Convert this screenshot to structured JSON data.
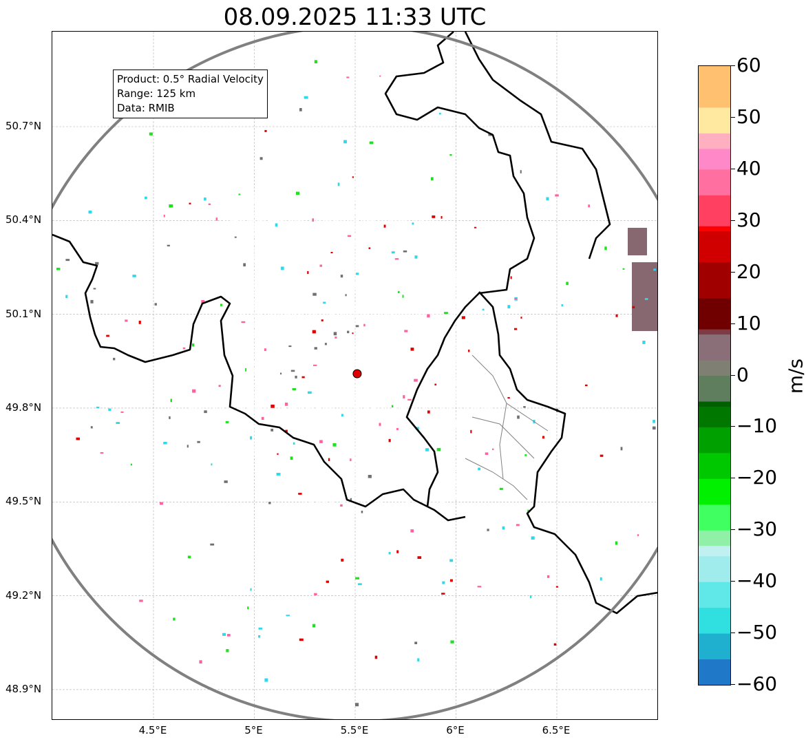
{
  "title": "08.09.2025 11:33 UTC",
  "info": {
    "product": "Product: 0.5° Radial Velocity",
    "range": "Range: 125 km",
    "data": "Data: RMIB"
  },
  "axes": {
    "lat_labels": [
      "50.7°N",
      "50.4°N",
      "50.1°N",
      "49.8°N",
      "49.5°N",
      "49.2°N",
      "48.9°N"
    ],
    "lon_labels": [
      "4.5°E",
      "5°E",
      "5.5°E",
      "6°E",
      "6.5°E"
    ],
    "lat_values": [
      50.7,
      50.4,
      50.1,
      49.8,
      49.5,
      49.2,
      48.9
    ],
    "lon_values": [
      4.5,
      5.0,
      5.5,
      6.0,
      6.5
    ],
    "lat_range": [
      48.8,
      51.0
    ],
    "lon_range": [
      4.0,
      7.0
    ],
    "grid": true
  },
  "radar": {
    "site_lat": 49.91,
    "site_lon": 5.51,
    "range_km": 125,
    "site_color": "#e00000",
    "range_ring_color": "#808080"
  },
  "colorbar": {
    "unit": "m/s",
    "min": -60,
    "max": 60,
    "tick_labels": [
      "60",
      "50",
      "40",
      "30",
      "20",
      "10",
      "0",
      "−10",
      "−20",
      "−30",
      "−40",
      "−50",
      "−60"
    ],
    "stops": [
      {
        "v": -60,
        "c": "#1f78c8"
      },
      {
        "v": -55,
        "c": "#1fb0d0"
      },
      {
        "v": -50,
        "c": "#30e0e0"
      },
      {
        "v": -45,
        "c": "#60e8e8"
      },
      {
        "v": -40,
        "c": "#a0ecec"
      },
      {
        "v": -35,
        "c": "#c0f0f0"
      },
      {
        "v": -33,
        "c": "#90f0a8"
      },
      {
        "v": -30,
        "c": "#40ff60"
      },
      {
        "v": -25,
        "c": "#00f000"
      },
      {
        "v": -20,
        "c": "#00c800"
      },
      {
        "v": -15,
        "c": "#00a000"
      },
      {
        "v": -10,
        "c": "#007800"
      },
      {
        "v": -6,
        "c": "#006000"
      },
      {
        "v": -5,
        "c": "#5e7e5e"
      },
      {
        "v": 0,
        "c": "#7f7f74"
      },
      {
        "v": 3,
        "c": "#8a6f78"
      },
      {
        "v": 8,
        "c": "#7e3b45"
      },
      {
        "v": 9,
        "c": "#700000"
      },
      {
        "v": 15,
        "c": "#a00000"
      },
      {
        "v": 22,
        "c": "#d00000"
      },
      {
        "v": 28,
        "c": "#ff0000"
      },
      {
        "v": 29,
        "c": "#ff4060"
      },
      {
        "v": 35,
        "c": "#ff70a0"
      },
      {
        "v": 40,
        "c": "#ff88c8"
      },
      {
        "v": 44,
        "c": "#ffb0c0"
      },
      {
        "v": 47,
        "c": "#ffe8a0"
      },
      {
        "v": 52,
        "c": "#ffc070"
      },
      {
        "v": 60,
        "c": "#ff9050"
      }
    ]
  },
  "echo_colors": {
    "approaching": "#647d62",
    "receding": "#876870",
    "noise": [
      "#e00000",
      "#20e020",
      "#ff60a0",
      "#30d8e8",
      "#707070"
    ]
  }
}
